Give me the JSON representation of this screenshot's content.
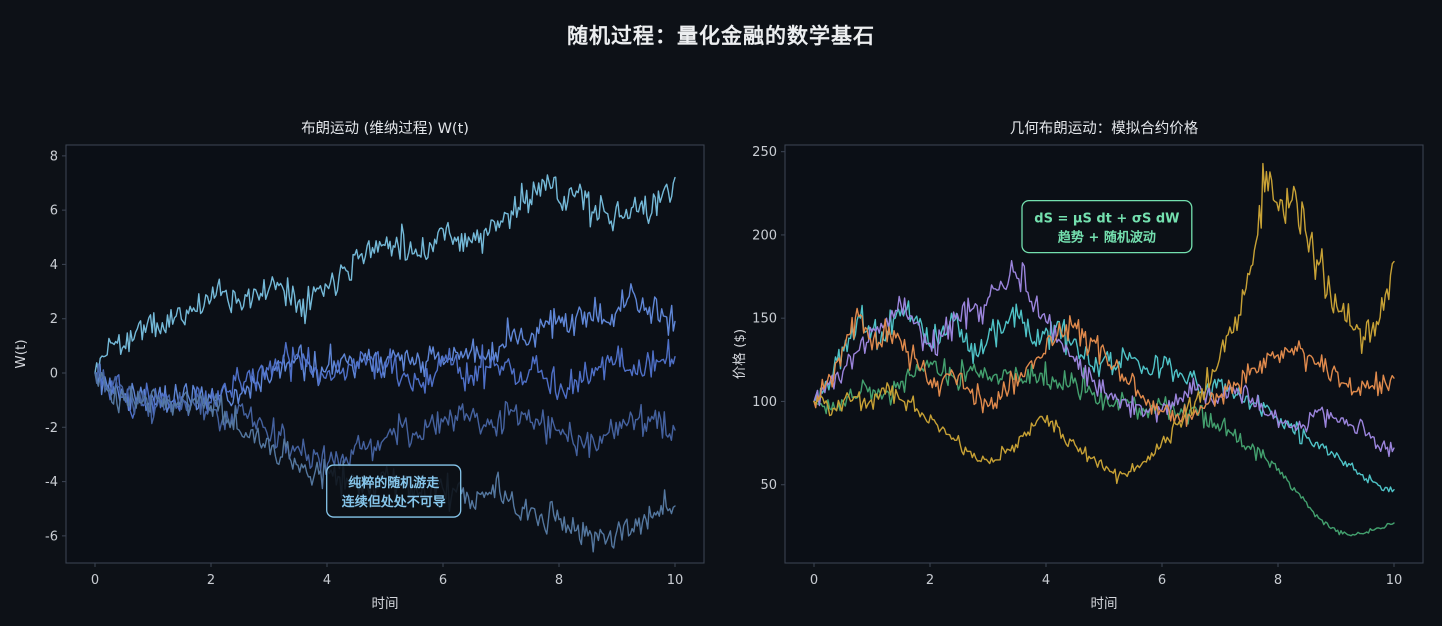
{
  "figure": {
    "suptitle": "随机过程：量化金融的数学基石",
    "background": "#0d1117",
    "plot_background": "#0b0f16",
    "spine_color": "#3a4250",
    "tick_label_color": "#c9cdd3",
    "axis_label_color": "#d3d6db",
    "title_color": "#e2e5e9"
  },
  "chart_data": [
    {
      "type": "line",
      "title": "布朗运动 (维纳过程) W(t)",
      "xlabel": "时间",
      "ylabel": "W(t)",
      "xlim": [
        -0.5,
        10.5
      ],
      "ylim": [
        -7,
        8.4
      ],
      "xticks": [
        0,
        2,
        4,
        6,
        8,
        10
      ],
      "yticks": [
        -6,
        -4,
        -2,
        0,
        2,
        4,
        6,
        8
      ],
      "grid": false,
      "legend": null,
      "annotation": {
        "x": 5.15,
        "y": -4.35,
        "lines": [
          "纯粹的随机游走",
          "连续但处处不可导"
        ],
        "color": "#86c5ea"
      },
      "series": [
        {
          "name": "wiener-path-1",
          "color": "#74b9d8",
          "x": [
            0,
            0.15,
            0.3,
            0.5,
            0.7,
            0.9,
            1.1,
            1.4,
            1.7,
            2,
            2.2,
            2.5,
            2.8,
            3,
            3.2,
            3.5,
            3.8,
            4,
            4.3,
            4.6,
            5,
            5.2,
            5.5,
            5.8,
            6,
            6.2,
            6.5,
            6.8,
            7,
            7.3,
            7.5,
            7.65,
            7.8,
            8,
            8.3,
            8.6,
            8.9,
            9.1,
            9.4,
            9.6,
            9.8,
            10
          ],
          "y": [
            0,
            0.6,
            1.1,
            1.0,
            1.5,
            1.8,
            1.6,
            2.1,
            2.4,
            2.7,
            3.0,
            2.6,
            2.9,
            3.1,
            3.3,
            2.6,
            3.0,
            3.2,
            3.9,
            4.4,
            4.7,
            5.0,
            4.4,
            4.7,
            5.3,
            5.0,
            4.8,
            5.2,
            5.6,
            6.1,
            6.4,
            7.0,
            7.3,
            6.3,
            6.7,
            5.9,
            5.6,
            5.7,
            6.2,
            5.9,
            6.7,
            7.2
          ]
        },
        {
          "name": "wiener-path-2",
          "color": "#5f86d6",
          "x": [
            0,
            0.2,
            0.4,
            0.7,
            1,
            1.3,
            1.6,
            1.9,
            2.2,
            2.5,
            2.8,
            3.1,
            3.4,
            3.7,
            4,
            4.3,
            4.6,
            4.9,
            5.2,
            5.5,
            5.8,
            6.1,
            6.4,
            6.7,
            7,
            7.2,
            7.5,
            7.8,
            8,
            8.2,
            8.5,
            8.8,
            9,
            9.3,
            9.5,
            9.8,
            10
          ],
          "y": [
            0,
            -0.4,
            -0.7,
            -1.0,
            -0.9,
            -1.1,
            -0.8,
            -1.0,
            -0.6,
            -0.8,
            -0.3,
            0.1,
            0.5,
            0.3,
            0.2,
            0.7,
            0.4,
            0.2,
            0.6,
            0.3,
            0.7,
            0.5,
            0.9,
            0.6,
            1.0,
            1.5,
            1.2,
            1.9,
            2.1,
            1.7,
            2.2,
            1.9,
            2.3,
            2.9,
            2.4,
            2.1,
            1.9
          ]
        },
        {
          "name": "wiener-path-3",
          "color": "#4e6fc6",
          "x": [
            0,
            0.2,
            0.5,
            0.8,
            1.1,
            1.4,
            1.7,
            2,
            2.3,
            2.6,
            2.9,
            3.2,
            3.5,
            3.8,
            4.1,
            4.4,
            4.7,
            5,
            5.3,
            5.6,
            5.9,
            6.2,
            6.5,
            6.8,
            7.1,
            7.4,
            7.7,
            8,
            8.3,
            8.6,
            8.9,
            9.2,
            9.5,
            9.8,
            10
          ],
          "y": [
            0,
            -0.5,
            -0.9,
            -1.1,
            -0.8,
            -1.2,
            -1.0,
            -1.1,
            -0.7,
            -0.3,
            0,
            0.4,
            0.7,
            0.2,
            -0.2,
            0.3,
            0.5,
            0.4,
            -0.1,
            -0.4,
            0.1,
            0.5,
            -0.1,
            0.2,
            0.4,
            -0.3,
            0.1,
            -0.7,
            -0.3,
            -0.1,
            0.6,
            0.1,
            0.3,
            0.5,
            0.6
          ]
        },
        {
          "name": "wiener-path-4",
          "color": "#44619e",
          "x": [
            0,
            0.2,
            0.5,
            0.8,
            1.1,
            1.4,
            1.7,
            2,
            2.3,
            2.6,
            2.9,
            3.2,
            3.5,
            3.8,
            4.1,
            4.3,
            4.6,
            5,
            5.3,
            5.6,
            6,
            6.4,
            6.8,
            7.2,
            7.6,
            8,
            8.4,
            8.8,
            9.2,
            9.6,
            10
          ],
          "y": [
            0,
            -0.5,
            -0.8,
            -1.2,
            -1.0,
            -1.3,
            -1.1,
            -1.4,
            -1.8,
            -1.5,
            -2.0,
            -2.3,
            -2.7,
            -3.0,
            -3.2,
            -3.3,
            -2.8,
            -2.4,
            -2.0,
            -2.3,
            -1.8,
            -1.5,
            -1.9,
            -1.4,
            -1.7,
            -2.1,
            -2.6,
            -2.3,
            -1.8,
            -1.6,
            -2.1
          ]
        },
        {
          "name": "wiener-path-5",
          "color": "#54779f",
          "x": [
            0,
            0.2,
            0.5,
            0.8,
            1.1,
            1.4,
            1.7,
            2,
            2.3,
            2.6,
            2.9,
            3.2,
            3.5,
            3.8,
            4.1,
            4.4,
            4.7,
            5,
            5.3,
            5.6,
            5.9,
            6.2,
            6.5,
            6.8,
            7.1,
            7.4,
            7.7,
            8,
            8.3,
            8.5,
            8.8,
            9,
            9.2,
            9.5,
            9.7,
            10
          ],
          "y": [
            0,
            -0.6,
            -1.0,
            -1.1,
            -0.9,
            -1.2,
            -1.0,
            -1.2,
            -1.7,
            -2.2,
            -2.6,
            -3.1,
            -3.4,
            -3.6,
            -3.8,
            -4.0,
            -4.2,
            -3.8,
            -4.0,
            -4.4,
            -4.1,
            -4.3,
            -4.7,
            -4.4,
            -4.6,
            -5.0,
            -5.2,
            -5.4,
            -5.8,
            -6.0,
            -6.3,
            -5.8,
            -6.0,
            -5.4,
            -5.1,
            -4.9
          ]
        }
      ]
    },
    {
      "type": "line",
      "title": "几何布朗运动：模拟合约价格",
      "xlabel": "时间",
      "ylabel": "价格 ($)",
      "xlim": [
        -0.5,
        10.5
      ],
      "ylim": [
        3,
        254
      ],
      "xticks": [
        0,
        2,
        4,
        6,
        8,
        10
      ],
      "yticks": [
        50,
        100,
        150,
        200,
        250
      ],
      "grid": false,
      "legend": null,
      "annotation": {
        "x": 5.05,
        "y": 205,
        "lines": [
          "dS = μS dt + σS dW",
          "趋势 + 随机波动"
        ],
        "color": "#74e0af"
      },
      "series": [
        {
          "name": "gbm-path-teal",
          "color": "#4fc3c7",
          "x": [
            0,
            0.2,
            0.4,
            0.6,
            0.8,
            1,
            1.2,
            1.4,
            1.6,
            1.8,
            2,
            2.2,
            2.4,
            2.6,
            2.8,
            3,
            3.2,
            3.4,
            3.6,
            3.8,
            4,
            4.2,
            4.4,
            4.6,
            4.8,
            5,
            5.2,
            5.5,
            5.8,
            6.1,
            6.4,
            6.7,
            7,
            7.3,
            7.6,
            7.9,
            8.2,
            8.5,
            8.8,
            9.1,
            9.4,
            9.7,
            10
          ],
          "y": [
            100,
            112,
            124,
            138,
            150,
            143,
            137,
            150,
            155,
            146,
            133,
            142,
            148,
            136,
            128,
            138,
            146,
            153,
            147,
            136,
            144,
            148,
            136,
            128,
            121,
            126,
            119,
            126,
            116,
            122,
            112,
            106,
            112,
            104,
            99,
            92,
            85,
            78,
            72,
            64,
            57,
            51,
            47
          ]
        },
        {
          "name": "gbm-path-green",
          "color": "#43a06e",
          "x": [
            0,
            0.3,
            0.6,
            0.9,
            1.2,
            1.5,
            1.8,
            2.1,
            2.4,
            2.7,
            3,
            3.3,
            3.6,
            3.9,
            4.2,
            4.5,
            4.8,
            5.1,
            5.4,
            5.7,
            6,
            6.3,
            6.6,
            6.9,
            7.2,
            7.5,
            7.8,
            8.1,
            8.4,
            8.7,
            9,
            9.2,
            9.5,
            9.8,
            10
          ],
          "y": [
            100,
            95,
            103,
            109,
            104,
            112,
            119,
            124,
            115,
            121,
            113,
            119,
            111,
            117,
            108,
            114,
            104,
            97,
            101,
            94,
            98,
            92,
            95,
            87,
            81,
            73,
            65,
            54,
            42,
            30,
            22,
            20,
            21,
            24,
            27
          ]
        },
        {
          "name": "gbm-path-purple",
          "color": "#9b84dc",
          "x": [
            0,
            0.25,
            0.5,
            0.75,
            1,
            1.25,
            1.5,
            1.75,
            2,
            2.25,
            2.5,
            2.75,
            3,
            3.25,
            3.5,
            3.75,
            4,
            4.25,
            4.5,
            4.8,
            5.1,
            5.4,
            5.7,
            6,
            6.3,
            6.6,
            6.9,
            7.2,
            7.5,
            7.8,
            8.1,
            8.4,
            8.7,
            9,
            9.3,
            9.6,
            9.8,
            10
          ],
          "y": [
            100,
            110,
            118,
            130,
            142,
            150,
            158,
            147,
            135,
            142,
            149,
            156,
            162,
            170,
            174,
            160,
            148,
            136,
            124,
            112,
            104,
            97,
            92,
            95,
            102,
            107,
            98,
            108,
            101,
            92,
            87,
            84,
            95,
            90,
            85,
            78,
            74,
            72
          ]
        },
        {
          "name": "gbm-path-orange",
          "color": "#e08a4c",
          "x": [
            0,
            0.2,
            0.4,
            0.6,
            0.8,
            1,
            1.2,
            1.5,
            1.8,
            2.1,
            2.4,
            2.7,
            3,
            3.3,
            3.6,
            3.9,
            4.2,
            4.5,
            4.8,
            5.1,
            5.4,
            5.7,
            6,
            6.3,
            6.7,
            7,
            7.3,
            7.6,
            8,
            8.3,
            8.6,
            9,
            9.3,
            9.6,
            10
          ],
          "y": [
            100,
            110,
            124,
            140,
            152,
            131,
            142,
            136,
            121,
            109,
            117,
            105,
            97,
            107,
            115,
            126,
            140,
            147,
            136,
            122,
            111,
            101,
            94,
            89,
            96,
            103,
            111,
            120,
            128,
            133,
            126,
            118,
            106,
            109,
            114
          ]
        },
        {
          "name": "gbm-path-gold",
          "color": "#c7a135",
          "x": [
            0,
            0.3,
            0.6,
            0.9,
            1.2,
            1.5,
            1.8,
            2.1,
            2.4,
            2.7,
            3,
            3.3,
            3.6,
            3.9,
            4.2,
            4.5,
            4.8,
            5.1,
            5.4,
            5.7,
            6,
            6.3,
            6.6,
            6.9,
            7.2,
            7.45,
            7.65,
            7.8,
            7.95,
            8.1,
            8.3,
            8.5,
            8.7,
            8.9,
            9.1,
            9.3,
            9.5,
            9.7,
            9.85,
            10
          ],
          "y": [
            100,
            92,
            103,
            96,
            108,
            101,
            94,
            87,
            78,
            70,
            64,
            69,
            79,
            91,
            85,
            74,
            66,
            58,
            55,
            64,
            76,
            88,
            102,
            118,
            141,
            168,
            200,
            238,
            220,
            212,
            226,
            198,
            182,
            166,
            154,
            143,
            137,
            148,
            164,
            184
          ]
        }
      ]
    }
  ]
}
